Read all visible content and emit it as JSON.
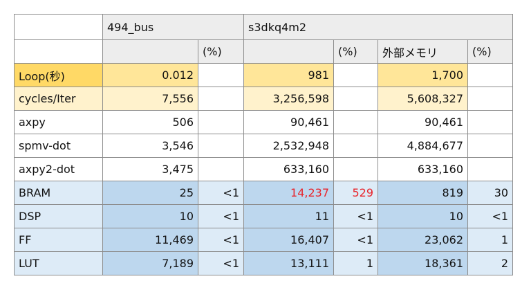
{
  "table": {
    "groups": [
      "494_bus",
      "s3dkq4m2"
    ],
    "subheaders": [
      "(%)",
      "(%)",
      "外部メモリ",
      "(%)"
    ],
    "rows": [
      [
        "Loop(秒)",
        "0.012",
        "981",
        "1,700"
      ],
      [
        "cycles/Iter",
        "7,556",
        "3,256,598",
        "5,608,327"
      ],
      [
        "axpy",
        "506",
        "90,461",
        "90,461"
      ],
      [
        "spmv-dot",
        "3,546",
        "2,532,948",
        "4,884,677"
      ],
      [
        "axpy2-dot",
        "3,475",
        "633,160",
        "633,160"
      ],
      [
        "BRAM",
        "25",
        "<1",
        "14,237",
        "529",
        "819",
        "30"
      ],
      [
        "DSP",
        "10",
        "<1",
        "11",
        "<1",
        "10",
        "<1"
      ],
      [
        "FF",
        "11,469",
        "<1",
        "16,407",
        "<1",
        "23,062",
        "1"
      ],
      [
        "LUT",
        "7,189",
        "<1",
        "13,111",
        "1",
        "18,361",
        "2"
      ]
    ]
  }
}
